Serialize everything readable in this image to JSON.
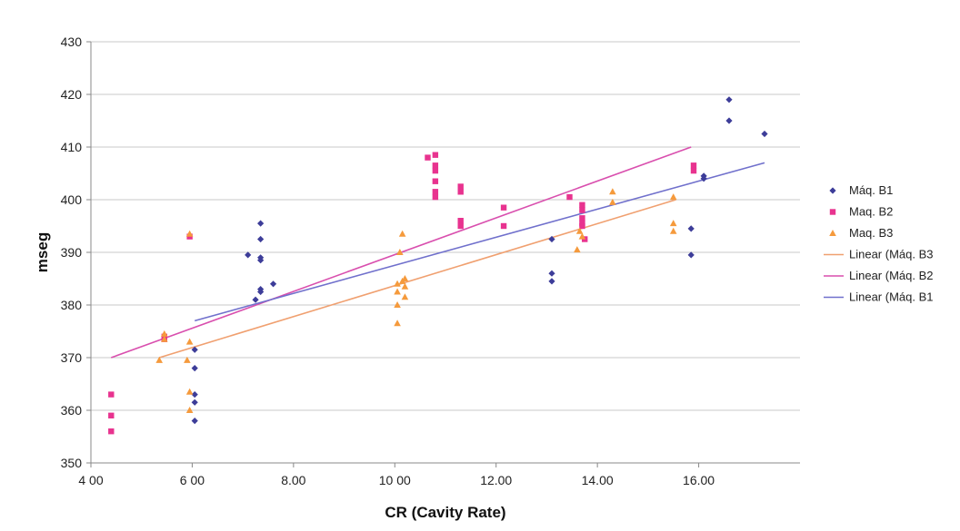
{
  "chart_data": {
    "type": "scatter",
    "title": "",
    "xlabel": "CR (Cavity Rate)",
    "ylabel": "mseg",
    "xlim": [
      4,
      18
    ],
    "ylim": [
      350,
      430
    ],
    "x_ticks": [
      4,
      6,
      8,
      10,
      12,
      14,
      16
    ],
    "x_tick_labels": [
      "4 00",
      "6 00",
      "8.00",
      "10 00",
      "12.00",
      "14.00",
      "16.00"
    ],
    "y_ticks": [
      350,
      360,
      370,
      380,
      390,
      400,
      410,
      420,
      430
    ],
    "y_tick_labels": [
      "350",
      "360",
      "370",
      "380",
      "390",
      "400",
      "410",
      "420",
      "430"
    ],
    "grid": "horizontal",
    "legend_position": "right",
    "series": [
      {
        "name": "Máq. B1",
        "color": "#3d3d99",
        "marker": "diamond",
        "x": [
          6.05,
          6.05,
          6.05,
          6.05,
          6.05,
          7.1,
          7.25,
          7.35,
          7.35,
          7.35,
          7.35,
          7.35,
          7.35,
          7.6,
          13.1,
          13.1,
          13.1,
          15.85,
          15.85,
          16.1,
          16.1,
          16.6,
          16.6,
          17.3
        ],
        "y": [
          358,
          361.5,
          363,
          368,
          371.5,
          389.5,
          381,
          395.5,
          392.5,
          389,
          388.5,
          383,
          382.5,
          384,
          392.5,
          386,
          384.5,
          394.5,
          389.5,
          404.5,
          404,
          419,
          415,
          412.5
        ]
      },
      {
        "name": "Maq. B2",
        "color": "#e8338f",
        "marker": "square",
        "x": [
          4.4,
          4.4,
          4.4,
          5.45,
          5.45,
          5.95,
          10.65,
          10.8,
          10.8,
          10.8,
          10.8,
          10.8,
          10.8,
          11.3,
          11.3,
          11.3,
          11.3,
          12.15,
          12.15,
          13.45,
          13.7,
          13.7,
          13.7,
          13.7,
          13.7,
          13.75,
          15.9,
          15.9
        ],
        "y": [
          363,
          359,
          356,
          374,
          373.5,
          393,
          408,
          408.5,
          406.5,
          405.5,
          403.5,
          401.5,
          400.5,
          402.5,
          401.5,
          396,
          395,
          398.5,
          395,
          400.5,
          399,
          398,
          396.5,
          395.5,
          395,
          392.5,
          406.5,
          405.5
        ]
      },
      {
        "name": "Maq. B3",
        "color": "#f59a3c",
        "marker": "triangle",
        "x": [
          5.35,
          5.45,
          5.45,
          5.9,
          5.95,
          5.95,
          5.95,
          5.95,
          10.05,
          10.05,
          10.05,
          10.05,
          10.1,
          10.15,
          10.15,
          10.2,
          10.2,
          10.2,
          13.6,
          13.65,
          13.7,
          14.3,
          14.3,
          15.5,
          15.5,
          15.5
        ],
        "y": [
          369.5,
          374.5,
          373.5,
          369.5,
          393.5,
          373,
          363.5,
          360,
          384,
          382.5,
          380,
          376.5,
          390,
          393.5,
          384.5,
          385,
          383.5,
          381.5,
          390.5,
          394,
          393,
          401.5,
          399.5,
          400.5,
          395.5,
          394
        ]
      }
    ],
    "trendlines": [
      {
        "name": "Linear (Máq. B3",
        "color": "#f0a070",
        "x": [
          5.35,
          15.55
        ],
        "y": [
          370,
          400
        ]
      },
      {
        "name": "Linear (Máq. B2",
        "color": "#d94fae",
        "x": [
          4.4,
          15.85
        ],
        "y": [
          370,
          410
        ]
      },
      {
        "name": "Linear (Máq. B1",
        "color": "#7070cc",
        "x": [
          6.05,
          17.3
        ],
        "y": [
          377,
          407
        ]
      }
    ],
    "legend": [
      {
        "label": "Máq. B1",
        "kind": "marker",
        "marker": "diamond",
        "color": "#3d3d99"
      },
      {
        "label": "Maq. B2",
        "kind": "marker",
        "marker": "square",
        "color": "#e8338f"
      },
      {
        "label": "Maq. B3",
        "kind": "marker",
        "marker": "triangle",
        "color": "#f59a3c"
      },
      {
        "label": "Linear (Máq. B3",
        "kind": "line",
        "color": "#f0a070"
      },
      {
        "label": "Linear (Máq. B2",
        "kind": "line",
        "color": "#d94fae"
      },
      {
        "label": "Linear (Máq. B1",
        "kind": "line",
        "color": "#7070cc"
      }
    ],
    "colors": {
      "grid": "#c8c8c8",
      "axis": "#888888",
      "background": "#ffffff"
    }
  }
}
